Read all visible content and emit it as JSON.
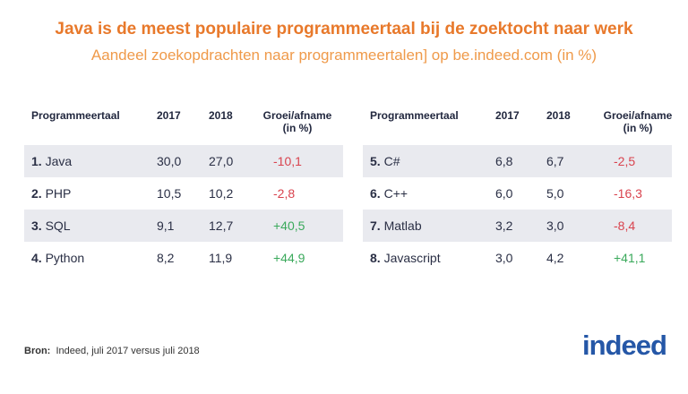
{
  "title": "Java is de meest populaire programmeertaal bij de zoektocht naar werk",
  "subtitle": "Aandeel zoekopdrachten naar programmeertalen] op be.indeed.com (in %)",
  "headers": {
    "lang": "Programmeertaal",
    "y2017": "2017",
    "y2018": "2018",
    "growth": "Groei/afname",
    "growth_unit": "(in %)"
  },
  "left": [
    {
      "rank": "1.",
      "name": "Java",
      "y2017": "30,0",
      "y2018": "27,0",
      "growth": "-10,1"
    },
    {
      "rank": "2.",
      "name": "PHP",
      "y2017": "10,5",
      "y2018": "10,2",
      "growth": "-2,8"
    },
    {
      "rank": "3.",
      "name": "SQL",
      "y2017": "9,1",
      "y2018": "12,7",
      "growth": "+40,5"
    },
    {
      "rank": "4.",
      "name": "Python",
      "y2017": "8,2",
      "y2018": "11,9",
      "growth": "+44,9"
    }
  ],
  "right": [
    {
      "rank": "5.",
      "name": "C#",
      "y2017": "6,8",
      "y2018": "6,7",
      "growth": "-2,5"
    },
    {
      "rank": "6.",
      "name": "C++",
      "y2017": "6,0",
      "y2018": "5,0",
      "growth": "-16,3"
    },
    {
      "rank": "7.",
      "name": "Matlab",
      "y2017": "3,2",
      "y2018": "3,0",
      "growth": "-8,4"
    },
    {
      "rank": "8.",
      "name": "Javascript",
      "y2017": "3,0",
      "y2018": "4,2",
      "growth": "+41,1"
    }
  ],
  "colors": {
    "title": "#e8792b",
    "negative": "#d9434e",
    "positive": "#3aa95b",
    "logo": "#2557a7"
  },
  "source": {
    "label": "Bron:",
    "text": "Indeed, juli 2017 versus juli 2018"
  },
  "logo": "indeed"
}
